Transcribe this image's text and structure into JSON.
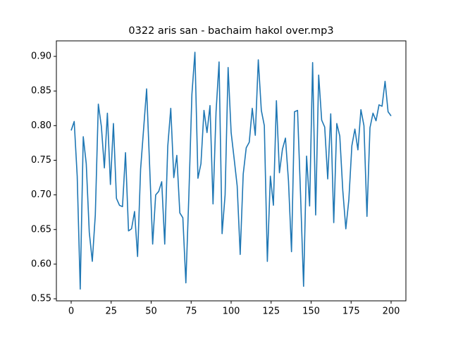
{
  "chart_data": {
    "type": "line",
    "title": "0322 aris san - bachaim hakol over.mp3",
    "x": [
      0,
      1.89,
      3.77,
      5.66,
      7.55,
      9.43,
      11.32,
      13.21,
      15.09,
      16.98,
      18.87,
      20.75,
      22.64,
      24.53,
      26.42,
      28.3,
      30.19,
      32.08,
      33.96,
      35.85,
      37.74,
      39.62,
      41.51,
      43.4,
      45.28,
      47.17,
      49.06,
      50.94,
      52.83,
      54.72,
      56.6,
      58.49,
      60.38,
      62.26,
      64.15,
      66.04,
      67.92,
      69.81,
      71.7,
      73.58,
      75.47,
      77.36,
      79.25,
      81.13,
      83.02,
      84.91,
      86.79,
      88.68,
      90.57,
      92.45,
      94.34,
      96.23,
      98.11,
      100,
      101.89,
      103.77,
      105.66,
      107.55,
      109.43,
      111.32,
      113.21,
      115.09,
      116.98,
      118.87,
      120.75,
      122.64,
      124.53,
      126.42,
      128.3,
      130.19,
      132.08,
      133.96,
      135.85,
      137.74,
      139.62,
      141.51,
      143.4,
      145.28,
      147.17,
      149.06,
      150.94,
      152.83,
      154.72,
      156.6,
      158.49,
      160.38,
      162.26,
      164.15,
      166.04,
      167.92,
      169.81,
      171.7,
      173.58,
      175.47,
      177.36,
      179.25,
      181.13,
      183.02,
      184.91,
      186.79,
      188.68,
      190.57,
      192.45,
      194.34,
      196.23,
      198.11,
      200
    ],
    "series": [
      {
        "color": "#1f77b4",
        "values": [
          0.793,
          0.806,
          0.727,
          0.564,
          0.784,
          0.745,
          0.646,
          0.604,
          0.671,
          0.831,
          0.799,
          0.739,
          0.818,
          0.715,
          0.803,
          0.695,
          0.685,
          0.683,
          0.761,
          0.648,
          0.651,
          0.676,
          0.611,
          0.737,
          0.795,
          0.853,
          0.741,
          0.629,
          0.7,
          0.705,
          0.719,
          0.629,
          0.77,
          0.825,
          0.725,
          0.757,
          0.674,
          0.667,
          0.573,
          0.7,
          0.845,
          0.906,
          0.724,
          0.745,
          0.822,
          0.79,
          0.829,
          0.687,
          0.82,
          0.892,
          0.644,
          0.7,
          0.884,
          0.79,
          0.752,
          0.713,
          0.614,
          0.73,
          0.768,
          0.776,
          0.825,
          0.786,
          0.895,
          0.822,
          0.8,
          0.604,
          0.727,
          0.685,
          0.836,
          0.732,
          0.766,
          0.782,
          0.72,
          0.618,
          0.82,
          0.822,
          0.7,
          0.568,
          0.756,
          0.684,
          0.891,
          0.671,
          0.873,
          0.808,
          0.798,
          0.723,
          0.817,
          0.66,
          0.803,
          0.785,
          0.706,
          0.651,
          0.693,
          0.771,
          0.795,
          0.765,
          0.823,
          0.8,
          0.669,
          0.797,
          0.818,
          0.807,
          0.83,
          0.828,
          0.864,
          0.82,
          0.814
        ]
      }
    ],
    "xlim": [
      -9.25,
      209.25
    ],
    "xticks": [
      0,
      25,
      50,
      75,
      100,
      125,
      150,
      175,
      200
    ],
    "ylim": [
      0.547,
      0.9224
    ],
    "yticks": [
      0.55,
      {
        "value": 0.6,
        "label": "0.60"
      },
      0.65,
      {
        "value": 0.7,
        "label": "0.70"
      },
      0.75,
      {
        "value": 0.8,
        "label": "0.80"
      },
      0.85,
      {
        "value": 0.9,
        "label": "0.90"
      }
    ]
  }
}
